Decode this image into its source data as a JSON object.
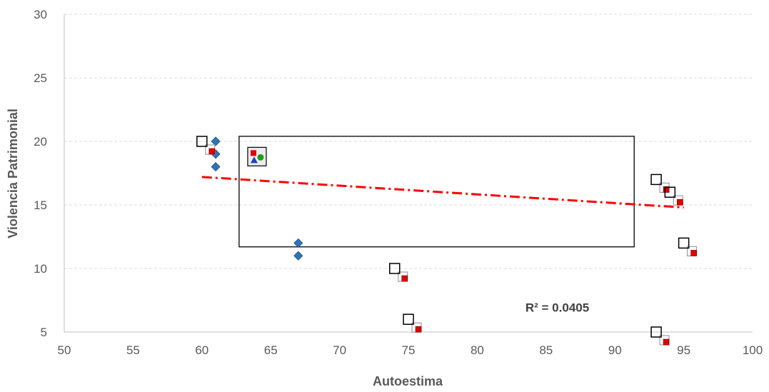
{
  "chart_data": {
    "type": "scatter",
    "title": "",
    "xlabel": "Autoestima",
    "ylabel": "Violencia Patrimonial",
    "xlim": [
      50,
      100
    ],
    "ylim": [
      5,
      30
    ],
    "x_ticks": [
      "50",
      "55",
      "60",
      "65",
      "70",
      "75",
      "80",
      "85",
      "90",
      "95",
      "100"
    ],
    "y_ticks": [
      "5",
      "10",
      "15",
      "20",
      "25",
      "30"
    ],
    "grid": "horizontal dashed",
    "series": [
      {
        "marker": "diamond",
        "color": "#2E75B6",
        "points": [
          {
            "x": 61,
            "y": 20
          },
          {
            "x": 61,
            "y": 19
          },
          {
            "x": 61,
            "y": 18
          },
          {
            "x": 67,
            "y": 12
          },
          {
            "x": 67,
            "y": 11
          }
        ]
      },
      {
        "marker": "open-square-with-red-shadow",
        "color": "#000000",
        "points": [
          {
            "x": 60,
            "y": 20
          },
          {
            "x": 74,
            "y": 10
          },
          {
            "x": 75,
            "y": 6
          },
          {
            "x": 93,
            "y": 17
          },
          {
            "x": 94,
            "y": 16
          },
          {
            "x": 95,
            "y": 12
          },
          {
            "x": 93,
            "y": 5
          }
        ]
      }
    ],
    "trendline": {
      "style": "dash-dot",
      "color": "#FF0000",
      "from": {
        "x": 60,
        "y": 17.2
      },
      "to": {
        "x": 95,
        "y": 14.8
      }
    },
    "annotation": {
      "text": "R² = 0.0405",
      "x": 83.5,
      "y": 6.6
    },
    "highlight_box": {
      "x0": 62.7,
      "x1": 91.4,
      "y0": 11.7,
      "y1": 20.4
    },
    "legend_icon": {
      "x": 64,
      "y": 18.8,
      "name": "chart-picture-icon"
    }
  }
}
